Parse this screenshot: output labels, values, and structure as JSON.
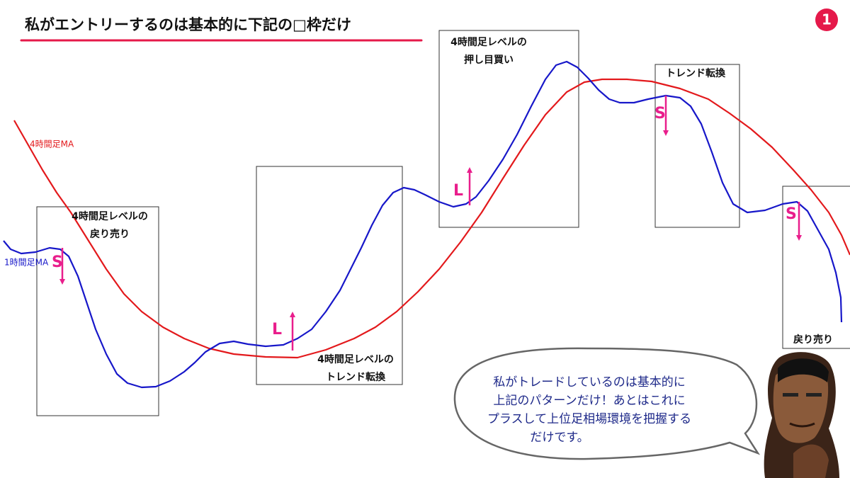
{
  "header": {
    "title": "私がエントリーするのは基本的に下記の□枠だけ",
    "badge": "1"
  },
  "ma_labels": {
    "ma4h": "4時間足MA",
    "ma1h": "1時間足MA"
  },
  "boxes": [
    {
      "lines": [
        "4時間足レベルの",
        "戻り売り"
      ]
    },
    {
      "lines": [
        "4時間足レベルの",
        "トレンド転換"
      ]
    },
    {
      "lines": [
        "4時間足レベルの",
        "押し目買い"
      ]
    },
    {
      "lines": [
        "トレンド転換"
      ]
    },
    {
      "lines": [
        "戻り売り"
      ]
    }
  ],
  "signals": [
    "S",
    "L",
    "L",
    "S",
    "S"
  ],
  "speech": {
    "lines": [
      "私がトレードしているのは基本的に",
      "上記のパターンだけ！あとはこれに",
      "プラスして上位足相場環境を把握する",
      "だけです。"
    ]
  }
}
